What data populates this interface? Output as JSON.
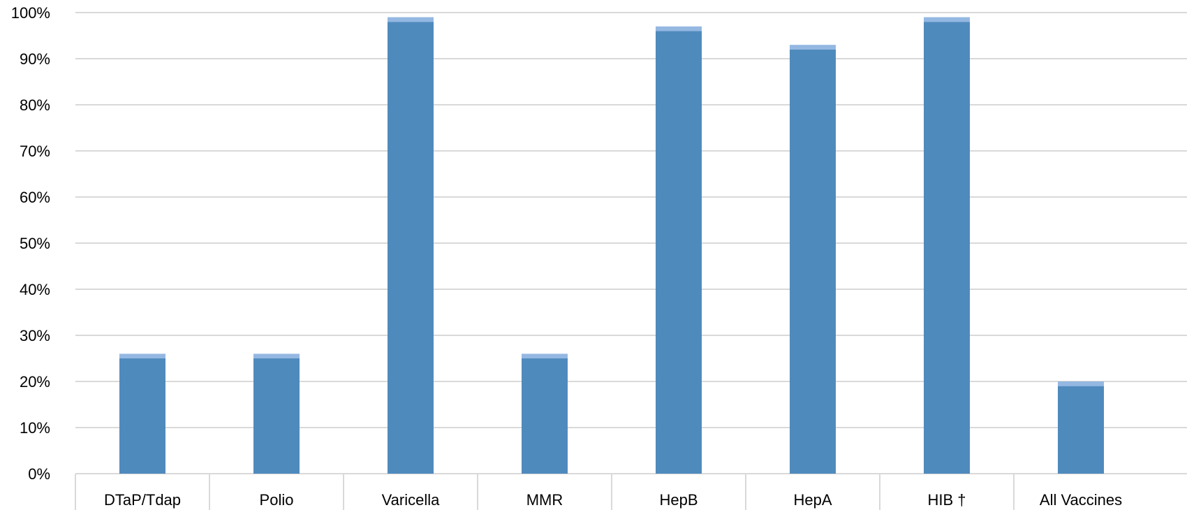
{
  "chart_data": {
    "type": "bar",
    "stacked": true,
    "categories": [
      "DTaP/Tdap",
      "Polio",
      "Varicella",
      "MMR",
      "HepB",
      "HepA",
      "HIB †",
      "All Vaccines"
    ],
    "series": [
      {
        "values": [
          25,
          25,
          98,
          25,
          96,
          92,
          98,
          19
        ],
        "color": "#4f8abd"
      },
      {
        "values": [
          1,
          1,
          1,
          1,
          1,
          1,
          1,
          1
        ],
        "color": "#94b8e2"
      }
    ],
    "title": "",
    "xlabel": "",
    "ylabel": "",
    "ylim": [
      0,
      100
    ],
    "yticks": [
      "0%",
      "10%",
      "20%",
      "30%",
      "40%",
      "50%",
      "60%",
      "70%",
      "80%",
      "90%",
      "100%"
    ],
    "grid": true,
    "legend": "none"
  }
}
